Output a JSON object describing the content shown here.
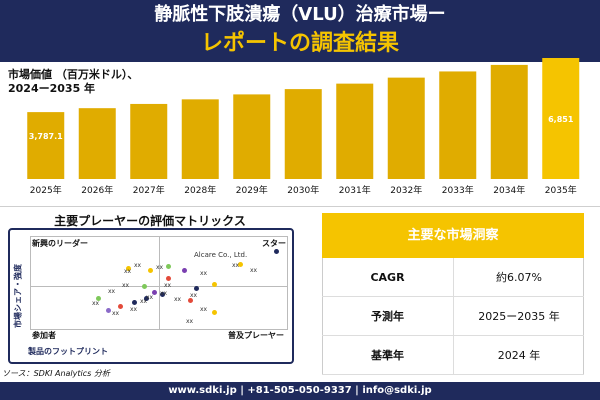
{
  "header": {
    "title_line1": "静脈性下肢潰瘍（VLU）治療市場ー",
    "title_line2": "レポートの調査結果"
  },
  "chart_ylabel_line1": "市場価値 （百万米ドル）、",
  "chart_ylabel_line2": "2024ー2035 年",
  "chart_data": {
    "type": "bar",
    "categories": [
      "2025年",
      "2026年",
      "2027年",
      "2028年",
      "2029年",
      "2030年",
      "2031年",
      "2032年",
      "2033年",
      "2034年",
      "2035年"
    ],
    "values": [
      3787.1,
      4010,
      4250,
      4510,
      4790,
      5090,
      5400,
      5740,
      6090,
      6460,
      6851
    ],
    "data_labels": {
      "first": "3,787.1",
      "last": "6,851"
    },
    "colors": {
      "bar": "#e0ac00",
      "bar_last": "#f5c400"
    }
  },
  "matrix": {
    "title": "主要プレーヤーの評価マトリックス",
    "q_top_left": "新興のリーダー",
    "q_top_right": "スター",
    "q_bottom_left": "参加者",
    "q_bottom_right": "普及プレーヤー",
    "y_axis": "市場シェア・強度",
    "x_axis": "製品のフットプリント",
    "highlight": "Alcare Co., Ltd.",
    "marker": "xx"
  },
  "insights": {
    "title": "主要な市場洞察",
    "rows": [
      {
        "key": "CAGR",
        "value": "約6.07%"
      },
      {
        "key": "予測年",
        "value": "2025ー2035 年"
      },
      {
        "key": "基準年",
        "value": "2024 年"
      }
    ]
  },
  "source": "ソース：SDKI Analytics 分析",
  "footer": "www.sdki.jp | +81-505-050-9337 | info@sdki.jp"
}
